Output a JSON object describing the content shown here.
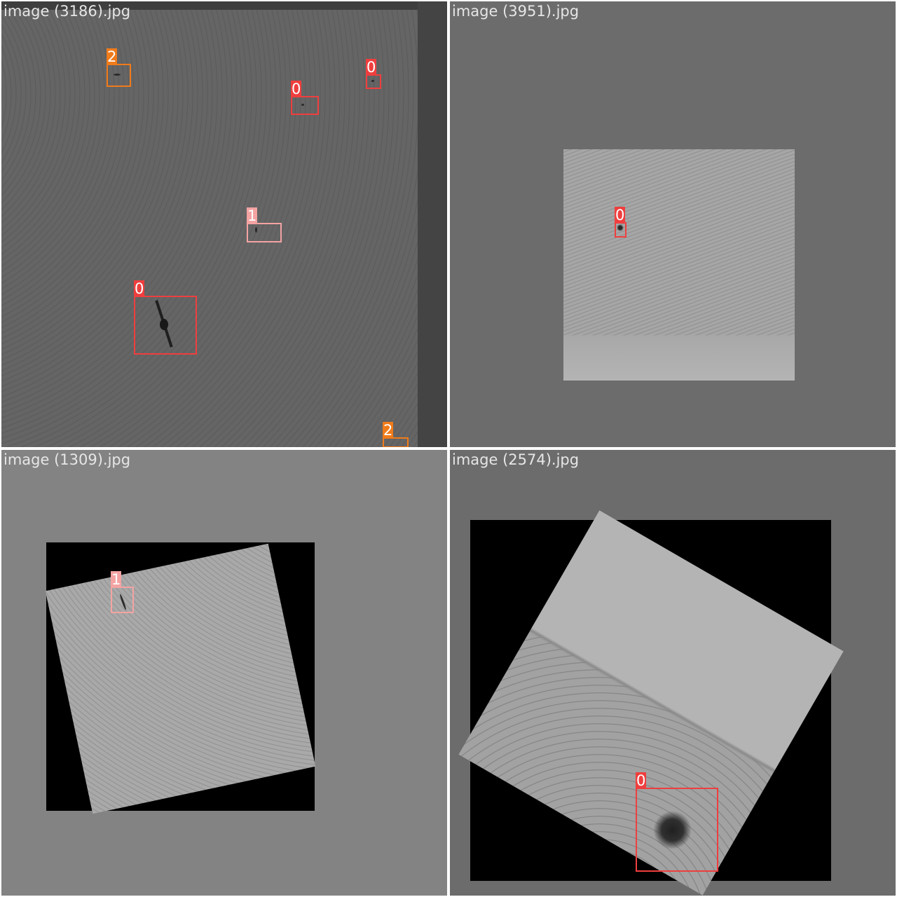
{
  "colors": {
    "class_0": "#ef3e3e",
    "class_1": "#f4a3a3",
    "class_2": "#f07b1a"
  },
  "tiles": [
    {
      "filename": "image (3186).jpg",
      "detections": [
        {
          "label": "2"
        },
        {
          "label": "0"
        },
        {
          "label": "0"
        },
        {
          "label": "1"
        },
        {
          "label": "0"
        },
        {
          "label": "2"
        }
      ]
    },
    {
      "filename": "image (3951).jpg",
      "detections": [
        {
          "label": "0"
        }
      ]
    },
    {
      "filename": "image (1309).jpg",
      "detections": [
        {
          "label": "1"
        }
      ]
    },
    {
      "filename": "image (2574).jpg",
      "detections": [
        {
          "label": "0"
        }
      ]
    }
  ]
}
